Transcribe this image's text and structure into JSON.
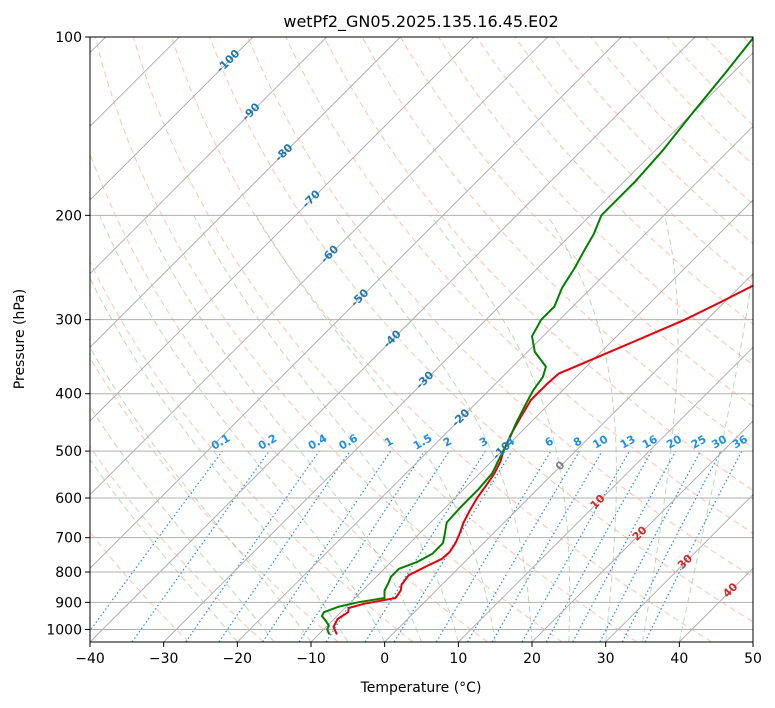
{
  "chart_data": {
    "type": "line",
    "subtype": "skew-t log-p diagram",
    "title": "wetPf2_GN05.2025.135.16.45.E02",
    "xlabel": "Temperature (°C)",
    "ylabel": "Pressure (hPa)",
    "xlim": [
      -40,
      50
    ],
    "ylim": [
      1050,
      100
    ],
    "y_scale": "log",
    "grid": true,
    "x_ticks": [
      -40,
      -30,
      -20,
      -10,
      0,
      10,
      20,
      30,
      40,
      50
    ],
    "y_ticks": [
      100,
      200,
      300,
      400,
      500,
      600,
      700,
      800,
      900,
      1000
    ],
    "skew_isotherm_labels": [
      "-100",
      "-90",
      "-80",
      "-70",
      "-60",
      "-50",
      "-40",
      "-30",
      "-20",
      "-10",
      "0",
      "10",
      "20",
      "30",
      "40"
    ],
    "mixing_ratio_labels": [
      "0.1",
      "0.2",
      "0.4",
      "0.6",
      "1",
      "1.5",
      "2",
      "3",
      "4",
      "6",
      "8",
      "10",
      "13",
      "16",
      "20",
      "25",
      "30",
      "36"
    ],
    "colors": {
      "temperature": "#e8000b",
      "dewpoint": "#008000",
      "isotherm_label": "#1f77b4",
      "isotherm_warm_label": "#d62728",
      "zero_label": "#7f7f7f",
      "mixing_ratio": "#1f8fe8",
      "dry_adiabat": "#ff9070",
      "moist_adiabat": "#60b060",
      "grid": "#b0b0b0"
    },
    "series": [
      {
        "points": [
          {
            "p": 1020,
            "t": -7.5
          },
          {
            "p": 990,
            "t": -9.0
          },
          {
            "p": 960,
            "t": -9.5
          },
          {
            "p": 935,
            "t": -9.0
          },
          {
            "p": 920,
            "t": -9.5
          },
          {
            "p": 905,
            "t": -8.0
          },
          {
            "p": 885,
            "t": -4.5
          },
          {
            "p": 860,
            "t": -4.8
          },
          {
            "p": 840,
            "t": -5.5
          },
          {
            "p": 810,
            "t": -5.8
          },
          {
            "p": 780,
            "t": -4.5
          },
          {
            "p": 760,
            "t": -3.5
          },
          {
            "p": 740,
            "t": -3.4
          },
          {
            "p": 715,
            "t": -3.8
          },
          {
            "p": 690,
            "t": -4.5
          },
          {
            "p": 660,
            "t": -5.5
          },
          {
            "p": 630,
            "t": -6.3
          },
          {
            "p": 600,
            "t": -7.0
          },
          {
            "p": 570,
            "t": -7.5
          },
          {
            "p": 545,
            "t": -8.0
          },
          {
            "p": 520,
            "t": -8.8
          },
          {
            "p": 500,
            "t": -9.8
          },
          {
            "p": 470,
            "t": -11.0
          },
          {
            "p": 440,
            "t": -12.0
          },
          {
            "p": 410,
            "t": -13.0
          },
          {
            "p": 385,
            "t": -13.0
          },
          {
            "p": 370,
            "t": -12.8
          },
          {
            "p": 360,
            "t": -11.5
          },
          {
            "p": 345,
            "t": -9.5
          },
          {
            "p": 320,
            "t": -6.0
          },
          {
            "p": 300,
            "t": -3.0
          },
          {
            "p": 280,
            "t": -0.5
          },
          {
            "p": 260,
            "t": 2.0
          },
          {
            "p": 240,
            "t": 4.0
          },
          {
            "p": 220,
            "t": 6.0
          },
          {
            "p": 200,
            "t": 8.0
          },
          {
            "p": 180,
            "t": 9.0
          },
          {
            "p": 160,
            "t": 10.0
          },
          {
            "p": 140,
            "t": 11.0
          },
          {
            "p": 120,
            "t": 12.0
          },
          {
            "p": 110,
            "t": 13.5
          },
          {
            "p": 100,
            "t": 15.5
          }
        ]
      },
      {
        "points": [
          {
            "p": 1020,
            "t": -8.5
          },
          {
            "p": 1000,
            "t": -9.5
          },
          {
            "p": 985,
            "t": -9.8
          },
          {
            "p": 965,
            "t": -11.0
          },
          {
            "p": 950,
            "t": -12.0
          },
          {
            "p": 935,
            "t": -12.3
          },
          {
            "p": 915,
            "t": -11.0
          },
          {
            "p": 900,
            "t": -9.0
          },
          {
            "p": 885,
            "t": -6.0
          },
          {
            "p": 860,
            "t": -7.0
          },
          {
            "p": 835,
            "t": -7.5
          },
          {
            "p": 815,
            "t": -8.0
          },
          {
            "p": 790,
            "t": -8.0
          },
          {
            "p": 770,
            "t": -6.5
          },
          {
            "p": 745,
            "t": -5.5
          },
          {
            "p": 715,
            "t": -5.5
          },
          {
            "p": 690,
            "t": -6.5
          },
          {
            "p": 660,
            "t": -7.8
          },
          {
            "p": 620,
            "t": -8.0
          },
          {
            "p": 580,
            "t": -8.0
          },
          {
            "p": 545,
            "t": -8.3
          },
          {
            "p": 510,
            "t": -9.5
          },
          {
            "p": 480,
            "t": -10.5
          },
          {
            "p": 450,
            "t": -11.8
          },
          {
            "p": 420,
            "t": -13.0
          },
          {
            "p": 395,
            "t": -14.0
          },
          {
            "p": 375,
            "t": -14.5
          },
          {
            "p": 360,
            "t": -15.5
          },
          {
            "p": 340,
            "t": -19.0
          },
          {
            "p": 320,
            "t": -21.5
          },
          {
            "p": 300,
            "t": -22.5
          },
          {
            "p": 285,
            "t": -22.5
          },
          {
            "p": 265,
            "t": -24.0
          },
          {
            "p": 245,
            "t": -25.0
          },
          {
            "p": 230,
            "t": -26.0
          },
          {
            "p": 215,
            "t": -27.0
          },
          {
            "p": 200,
            "t": -28.5
          },
          {
            "p": 190,
            "t": -28.5
          },
          {
            "p": 175,
            "t": -28.5
          },
          {
            "p": 155,
            "t": -29.0
          },
          {
            "p": 135,
            "t": -30.0
          },
          {
            "p": 115,
            "t": -31.0
          },
          {
            "p": 100,
            "t": -32.0
          }
        ]
      }
    ]
  }
}
